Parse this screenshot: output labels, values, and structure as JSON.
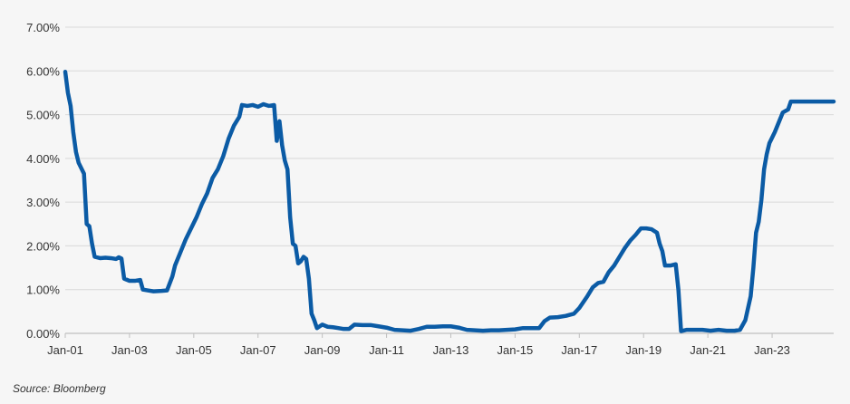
{
  "chart_data": {
    "type": "line",
    "title": "",
    "xlabel": "",
    "ylabel": "",
    "x_ticks": [
      "Jan-01",
      "Jan-03",
      "Jan-05",
      "Jan-07",
      "Jan-09",
      "Jan-11",
      "Jan-13",
      "Jan-15",
      "Jan-17",
      "Jan-19",
      "Jan-21",
      "Jan-23"
    ],
    "y_ticks": [
      "0.00%",
      "1.00%",
      "2.00%",
      "3.00%",
      "4.00%",
      "5.00%",
      "6.00%",
      "7.00%"
    ],
    "xlim": [
      "2001-01",
      "2024-12"
    ],
    "ylim": [
      0,
      7
    ],
    "y_unit": "percent",
    "grid": "horizontal",
    "legend": "none",
    "series": [
      {
        "color": "#0b5ba5",
        "points": [
          [
            "2001-01",
            5.98
          ],
          [
            "2001-02",
            5.5
          ],
          [
            "2001-03",
            5.2
          ],
          [
            "2001-04",
            4.6
          ],
          [
            "2001-05",
            4.15
          ],
          [
            "2001-06",
            3.9
          ],
          [
            "2001-08",
            3.65
          ],
          [
            "2001-09",
            2.5
          ],
          [
            "2001-10",
            2.45
          ],
          [
            "2001-11",
            2.05
          ],
          [
            "2001-12",
            1.75
          ],
          [
            "2002-02",
            1.72
          ],
          [
            "2002-04",
            1.73
          ],
          [
            "2002-06",
            1.72
          ],
          [
            "2002-08",
            1.7
          ],
          [
            "2002-09",
            1.74
          ],
          [
            "2002-10",
            1.71
          ],
          [
            "2002-11",
            1.25
          ],
          [
            "2003-01",
            1.2
          ],
          [
            "2003-03",
            1.2
          ],
          [
            "2003-05",
            1.22
          ],
          [
            "2003-06",
            1.0
          ],
          [
            "2003-08",
            0.98
          ],
          [
            "2003-10",
            0.96
          ],
          [
            "2004-01",
            0.97
          ],
          [
            "2004-03",
            0.98
          ],
          [
            "2004-05",
            1.3
          ],
          [
            "2004-06",
            1.55
          ],
          [
            "2004-08",
            1.85
          ],
          [
            "2004-10",
            2.15
          ],
          [
            "2004-12",
            2.4
          ],
          [
            "2005-02",
            2.65
          ],
          [
            "2005-04",
            2.95
          ],
          [
            "2005-06",
            3.2
          ],
          [
            "2005-08",
            3.55
          ],
          [
            "2005-10",
            3.75
          ],
          [
            "2005-12",
            4.05
          ],
          [
            "2006-02",
            4.45
          ],
          [
            "2006-04",
            4.75
          ],
          [
            "2006-06",
            4.95
          ],
          [
            "2006-07",
            5.22
          ],
          [
            "2006-09",
            5.2
          ],
          [
            "2006-11",
            5.22
          ],
          [
            "2007-01",
            5.18
          ],
          [
            "2007-03",
            5.24
          ],
          [
            "2007-05",
            5.2
          ],
          [
            "2007-07",
            5.22
          ],
          [
            "2007-08",
            4.4
          ],
          [
            "2007-09",
            4.85
          ],
          [
            "2007-10",
            4.3
          ],
          [
            "2007-11",
            3.95
          ],
          [
            "2007-12",
            3.75
          ],
          [
            "2008-01",
            2.65
          ],
          [
            "2008-02",
            2.05
          ],
          [
            "2008-03",
            2.0
          ],
          [
            "2008-04",
            1.6
          ],
          [
            "2008-05",
            1.65
          ],
          [
            "2008-06",
            1.75
          ],
          [
            "2008-07",
            1.7
          ],
          [
            "2008-08",
            1.25
          ],
          [
            "2008-09",
            0.45
          ],
          [
            "2008-10",
            0.3
          ],
          [
            "2008-11",
            0.12
          ],
          [
            "2009-01",
            0.2
          ],
          [
            "2009-03",
            0.15
          ],
          [
            "2009-05",
            0.14
          ],
          [
            "2009-07",
            0.12
          ],
          [
            "2009-09",
            0.1
          ],
          [
            "2009-11",
            0.1
          ],
          [
            "2010-01",
            0.2
          ],
          [
            "2010-04",
            0.19
          ],
          [
            "2010-07",
            0.19
          ],
          [
            "2010-10",
            0.16
          ],
          [
            "2011-01",
            0.13
          ],
          [
            "2011-04",
            0.08
          ],
          [
            "2011-07",
            0.07
          ],
          [
            "2011-10",
            0.06
          ],
          [
            "2012-01",
            0.1
          ],
          [
            "2012-04",
            0.15
          ],
          [
            "2012-07",
            0.15
          ],
          [
            "2012-10",
            0.16
          ],
          [
            "2013-01",
            0.16
          ],
          [
            "2013-04",
            0.13
          ],
          [
            "2013-07",
            0.08
          ],
          [
            "2013-10",
            0.07
          ],
          [
            "2014-01",
            0.06
          ],
          [
            "2014-04",
            0.07
          ],
          [
            "2014-07",
            0.07
          ],
          [
            "2014-10",
            0.08
          ],
          [
            "2015-01",
            0.09
          ],
          [
            "2015-04",
            0.12
          ],
          [
            "2015-07",
            0.12
          ],
          [
            "2015-10",
            0.12
          ],
          [
            "2015-12",
            0.28
          ],
          [
            "2016-02",
            0.36
          ],
          [
            "2016-05",
            0.37
          ],
          [
            "2016-08",
            0.4
          ],
          [
            "2016-11",
            0.45
          ],
          [
            "2017-01",
            0.58
          ],
          [
            "2017-04",
            0.85
          ],
          [
            "2017-06",
            1.05
          ],
          [
            "2017-08",
            1.15
          ],
          [
            "2017-10",
            1.18
          ],
          [
            "2017-12",
            1.4
          ],
          [
            "2018-02",
            1.55
          ],
          [
            "2018-04",
            1.75
          ],
          [
            "2018-06",
            1.95
          ],
          [
            "2018-08",
            2.12
          ],
          [
            "2018-10",
            2.25
          ],
          [
            "2018-12",
            2.4
          ],
          [
            "2019-02",
            2.4
          ],
          [
            "2019-04",
            2.38
          ],
          [
            "2019-06",
            2.3
          ],
          [
            "2019-07",
            2.05
          ],
          [
            "2019-08",
            1.88
          ],
          [
            "2019-09",
            1.55
          ],
          [
            "2019-11",
            1.55
          ],
          [
            "2020-01",
            1.58
          ],
          [
            "2020-02",
            1.0
          ],
          [
            "2020-03",
            0.05
          ],
          [
            "2020-05",
            0.08
          ],
          [
            "2020-08",
            0.08
          ],
          [
            "2020-11",
            0.08
          ],
          [
            "2021-02",
            0.06
          ],
          [
            "2021-05",
            0.08
          ],
          [
            "2021-08",
            0.06
          ],
          [
            "2021-11",
            0.06
          ],
          [
            "2022-01",
            0.08
          ],
          [
            "2022-03",
            0.3
          ],
          [
            "2022-05",
            0.85
          ],
          [
            "2022-06",
            1.5
          ],
          [
            "2022-07",
            2.3
          ],
          [
            "2022-08",
            2.55
          ],
          [
            "2022-09",
            3.05
          ],
          [
            "2022-10",
            3.75
          ],
          [
            "2022-11",
            4.1
          ],
          [
            "2022-12",
            4.35
          ],
          [
            "2023-02",
            4.6
          ],
          [
            "2023-04",
            4.9
          ],
          [
            "2023-05",
            5.05
          ],
          [
            "2023-07",
            5.12
          ],
          [
            "2023-08",
            5.3
          ],
          [
            "2023-10",
            5.3
          ],
          [
            "2024-01",
            5.3
          ],
          [
            "2024-06",
            5.3
          ],
          [
            "2024-12",
            5.3
          ]
        ]
      }
    ]
  },
  "source_note": "Source: Bloomberg"
}
